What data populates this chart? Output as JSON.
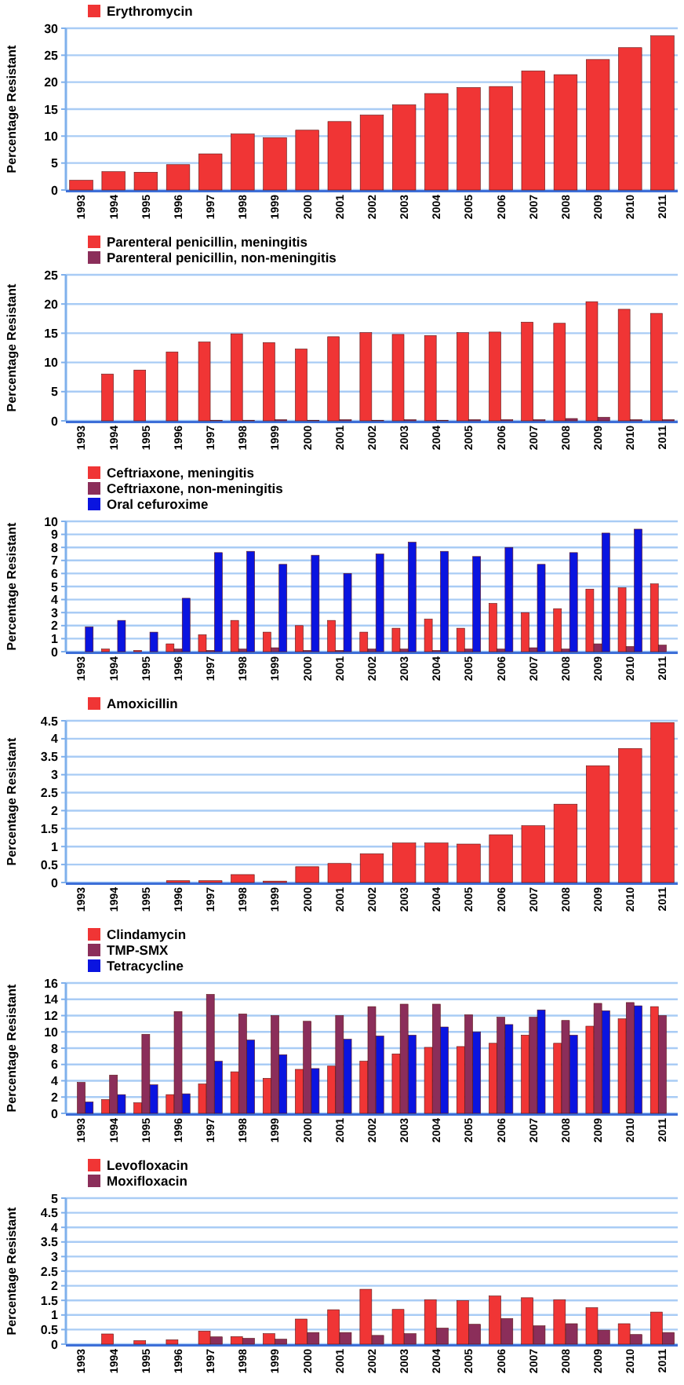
{
  "chart_data": [
    {
      "type": "bar",
      "ylabel": "Percentage Resistant",
      "categories": [
        "1993",
        "1994",
        "1995",
        "1996",
        "1997",
        "1998",
        "1999",
        "2000",
        "2001",
        "2002",
        "2003",
        "2004",
        "2005",
        "2006",
        "2007",
        "2008",
        "2009",
        "2010",
        "2011"
      ],
      "ylim": [
        0,
        30
      ],
      "yticks": [
        0,
        5,
        10,
        15,
        20,
        25,
        30
      ],
      "grid": "y",
      "legend": "top left",
      "series": [
        {
          "name": "Erythromycin",
          "color": "#f03535",
          "values": [
            1.8,
            3.4,
            3.3,
            4.7,
            6.7,
            10.4,
            9.7,
            11.1,
            12.7,
            13.9,
            15.8,
            17.9,
            19.0,
            19.2,
            22.1,
            21.4,
            24.2,
            26.4,
            28.6
          ]
        }
      ]
    },
    {
      "type": "bar",
      "ylabel": "Percentage Resistant",
      "categories": [
        "1993",
        "1994",
        "1995",
        "1996",
        "1997",
        "1998",
        "1999",
        "2000",
        "2001",
        "2002",
        "2003",
        "2004",
        "2005",
        "2006",
        "2007",
        "2008",
        "2009",
        "2010",
        "2011"
      ],
      "ylim": [
        0,
        25
      ],
      "yticks": [
        0,
        5,
        10,
        15,
        20,
        25
      ],
      "grid": "y",
      "legend": "top left",
      "series": [
        {
          "name": "Parenteral penicillin, meningitis",
          "color": "#f03535",
          "values": [
            0,
            8.0,
            8.7,
            11.8,
            13.5,
            14.9,
            13.4,
            12.3,
            14.4,
            15.1,
            14.8,
            14.6,
            15.1,
            15.2,
            16.9,
            16.7,
            20.4,
            19.1,
            18.4
          ]
        },
        {
          "name": "Parenteral penicillin, non-meningitis",
          "color": "#8b2e5a",
          "values": [
            0,
            0,
            0,
            0,
            0.1,
            0.1,
            0.2,
            0.1,
            0.2,
            0.1,
            0.2,
            0.1,
            0.2,
            0.2,
            0.2,
            0.4,
            0.6,
            0.2,
            0.2
          ]
        }
      ]
    },
    {
      "type": "bar",
      "ylabel": "Percentage Resistant",
      "categories": [
        "1993",
        "1994",
        "1995",
        "1996",
        "1997",
        "1998",
        "1999",
        "2000",
        "2001",
        "2002",
        "2003",
        "2004",
        "2005",
        "2006",
        "2007",
        "2008",
        "2009",
        "2010",
        "2011"
      ],
      "ylim": [
        0,
        10
      ],
      "yticks": [
        0,
        1,
        2,
        3,
        4,
        5,
        6,
        7,
        8,
        9,
        10
      ],
      "grid": "y",
      "legend": "top left",
      "series": [
        {
          "name": "Ceftriaxone, meningitis",
          "color": "#f03535",
          "values": [
            0,
            0.2,
            0.1,
            0.6,
            1.3,
            2.4,
            1.5,
            2.0,
            2.4,
            1.5,
            1.8,
            2.5,
            1.8,
            3.7,
            3.0,
            3.3,
            4.8,
            4.9,
            5.2
          ]
        },
        {
          "name": "Ceftriaxone, non-meningitis",
          "color": "#8b2e5a",
          "values": [
            0,
            0,
            0,
            0.2,
            0.1,
            0.2,
            0.3,
            0.1,
            0.1,
            0.2,
            0.2,
            0.1,
            0.2,
            0.2,
            0.3,
            0.2,
            0.6,
            0.4,
            0.5
          ]
        },
        {
          "name": "Oral cefuroxime",
          "color": "#0a14e0",
          "values": [
            1.9,
            2.4,
            1.5,
            4.1,
            7.6,
            7.7,
            6.7,
            7.4,
            6.0,
            7.5,
            8.4,
            7.7,
            7.3,
            8.0,
            6.7,
            7.6,
            9.1,
            9.4,
            null
          ]
        }
      ]
    },
    {
      "type": "bar",
      "ylabel": "Percentage Resistant",
      "categories": [
        "1993",
        "1994",
        "1995",
        "1996",
        "1997",
        "1998",
        "1999",
        "2000",
        "2001",
        "2002",
        "2003",
        "2004",
        "2005",
        "2006",
        "2007",
        "2008",
        "2009",
        "2010",
        "2011"
      ],
      "ylim": [
        0,
        4.5
      ],
      "yticks": [
        0,
        0.5,
        1,
        1.5,
        2,
        2.5,
        3,
        3.5,
        4,
        4.5
      ],
      "grid": "y",
      "legend": "top left",
      "series": [
        {
          "name": "Amoxicillin",
          "color": "#f03535",
          "values": [
            0,
            0,
            0,
            0.05,
            0.05,
            0.22,
            0.04,
            0.44,
            0.53,
            0.8,
            1.1,
            1.1,
            1.07,
            1.33,
            1.58,
            2.18,
            3.25,
            3.73,
            4.45
          ]
        }
      ]
    },
    {
      "type": "bar",
      "ylabel": "Percentage Resistant",
      "categories": [
        "1993",
        "1994",
        "1995",
        "1996",
        "1997",
        "1998",
        "1999",
        "2000",
        "2001",
        "2002",
        "2003",
        "2004",
        "2005",
        "2006",
        "2007",
        "2008",
        "2009",
        "2010",
        "2011"
      ],
      "ylim": [
        0,
        16
      ],
      "yticks": [
        0,
        2,
        4,
        6,
        8,
        10,
        12,
        14,
        16
      ],
      "grid": "y",
      "legend": "top left",
      "series": [
        {
          "name": "Clindamycin",
          "color": "#f03535",
          "values": [
            0,
            1.7,
            1.3,
            2.3,
            3.6,
            5.1,
            4.3,
            5.4,
            5.8,
            6.4,
            7.3,
            8.1,
            8.2,
            8.6,
            9.6,
            8.6,
            10.7,
            11.6,
            13.1
          ]
        },
        {
          "name": "TMP-SMX",
          "color": "#8b2e5a",
          "values": [
            3.8,
            4.7,
            9.7,
            12.5,
            14.6,
            12.2,
            12.0,
            11.3,
            12.0,
            13.1,
            13.4,
            13.4,
            12.1,
            11.8,
            11.8,
            11.4,
            13.5,
            13.6,
            12.0
          ]
        },
        {
          "name": "Tetracycline",
          "color": "#0a14e0",
          "values": [
            1.4,
            2.3,
            3.5,
            2.4,
            6.4,
            9.0,
            7.2,
            5.5,
            9.1,
            9.5,
            9.6,
            10.6,
            10.0,
            10.9,
            12.7,
            9.6,
            12.6,
            13.2,
            null
          ]
        }
      ]
    },
    {
      "type": "bar",
      "ylabel": "Percentage Resistant",
      "categories": [
        "1993",
        "1994",
        "1995",
        "1996",
        "1997",
        "1998",
        "1999",
        "2000",
        "2001",
        "2002",
        "2003",
        "2004",
        "2005",
        "2006",
        "2007",
        "2008",
        "2009",
        "2010",
        "2011"
      ],
      "ylim": [
        0,
        5
      ],
      "yticks": [
        0,
        0.5,
        1,
        1.5,
        2,
        2.5,
        3,
        3.5,
        4,
        4.5,
        5
      ],
      "grid": "y",
      "legend": "top left",
      "series": [
        {
          "name": "Levofloxacin",
          "color": "#f03535",
          "values": [
            0,
            0.35,
            0.12,
            0.15,
            0.45,
            0.26,
            0.36,
            0.86,
            1.18,
            1.88,
            1.19,
            1.52,
            1.49,
            1.65,
            1.59,
            1.52,
            1.25,
            0.7,
            1.1
          ]
        },
        {
          "name": "Moxifloxacin",
          "color": "#8b2e5a",
          "values": [
            0,
            0,
            0,
            0,
            0.25,
            0.2,
            0.17,
            0.4,
            0.4,
            0.3,
            0.36,
            0.55,
            0.68,
            0.88,
            0.63,
            0.7,
            0.48,
            0.33,
            0.4
          ]
        }
      ]
    }
  ]
}
